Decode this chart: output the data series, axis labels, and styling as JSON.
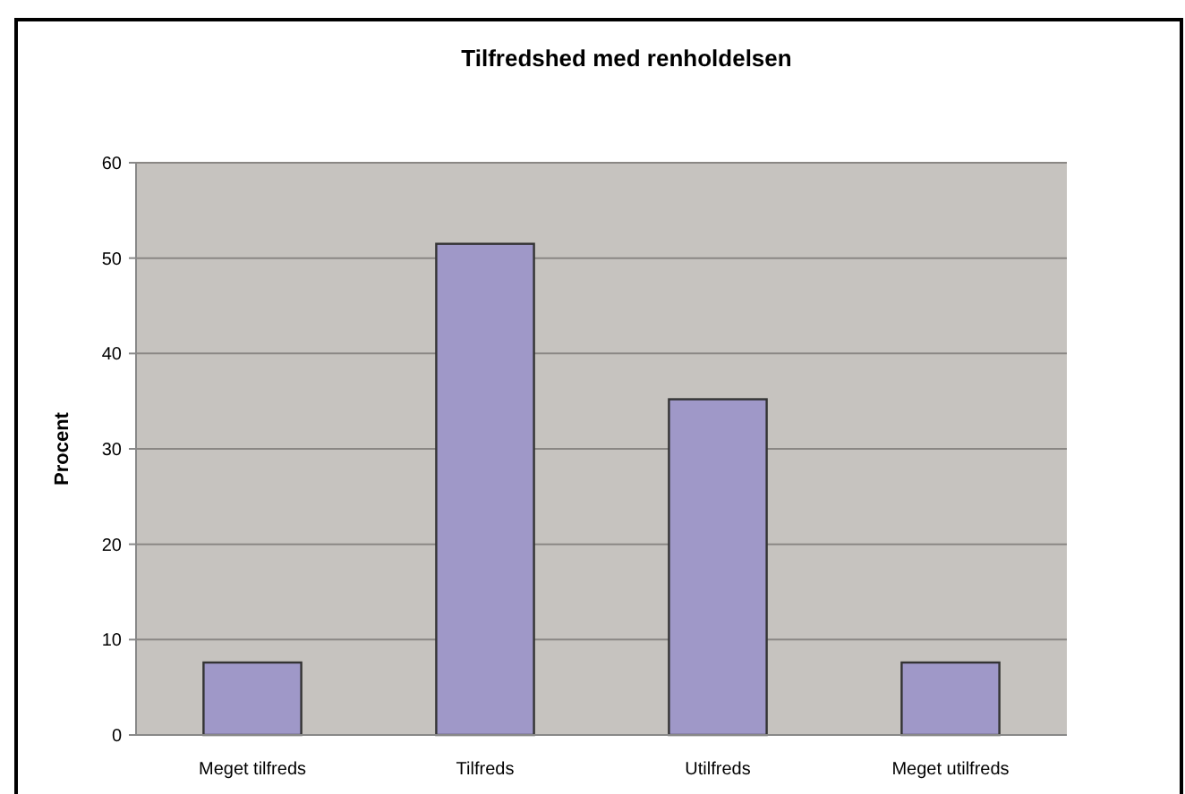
{
  "chart_data": {
    "type": "bar",
    "title": "Tilfredshed med renholdelsen",
    "ylabel": "Procent",
    "categories": [
      "Meget tilfreds",
      "Tilfreds",
      "Utilfreds",
      "Meget utilfreds"
    ],
    "values": [
      7.6,
      51.5,
      35.2,
      7.6
    ],
    "color": "#9f98c8",
    "ylim": [
      0,
      60
    ],
    "yticks": [
      0,
      10,
      20,
      30,
      40,
      50,
      60
    ],
    "grid": "y"
  }
}
